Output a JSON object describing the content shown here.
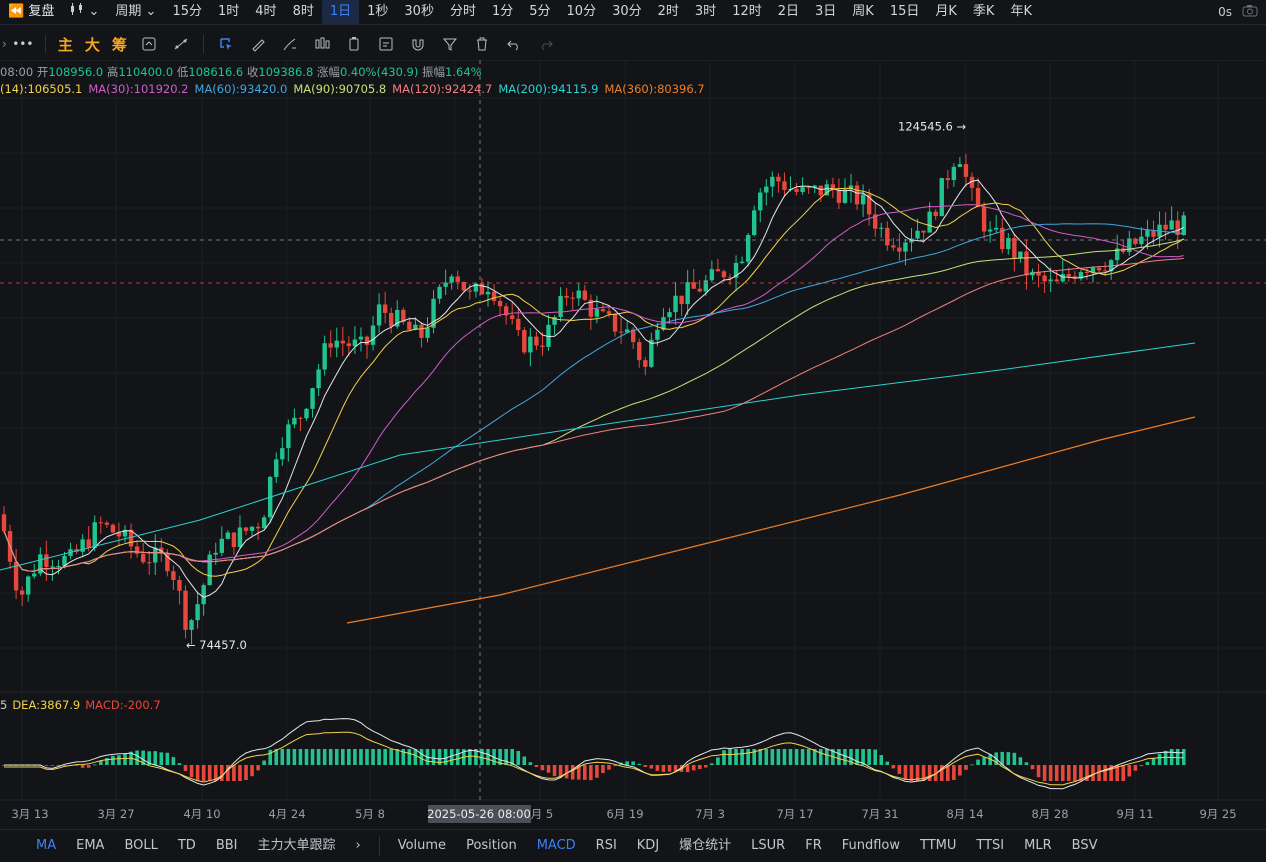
{
  "toolbar": {
    "replay": "复盘",
    "period_label": "周期",
    "periods": [
      "15分",
      "1时",
      "4时",
      "8时",
      "1日",
      "1秒",
      "30秒",
      "分时",
      "1分",
      "5分",
      "10分",
      "30分",
      "2时",
      "3时",
      "12时",
      "2日",
      "3日",
      "周K",
      "15日",
      "月K",
      "季K",
      "年K"
    ],
    "active_period": "1日",
    "timer": "0s"
  },
  "drawbar": {
    "labels": [
      "主",
      "大",
      "筹"
    ]
  },
  "legend": {
    "time_fragment": "08:00",
    "open_label": "开",
    "open": "108956.0",
    "high_label": "高",
    "high": "110400.0",
    "low_label": "低",
    "low": "108616.6",
    "close_label": "收",
    "close": "109386.8",
    "change_label": "涨幅",
    "change": "0.40%(430.9)",
    "amp_label": "振幅",
    "amp": "1.64%"
  },
  "ma_legend": [
    {
      "text": "(14):106505.1",
      "color": "#f3d34a"
    },
    {
      "text": "MA(30):101920.2",
      "color": "#d35bc8"
    },
    {
      "text": "MA(60):93420.0",
      "color": "#3fa7e0"
    },
    {
      "text": "MA(90):90705.8",
      "color": "#c9e07a"
    },
    {
      "text": "MA(120):92424.7",
      "color": "#f08080"
    },
    {
      "text": "MA(200):94115.9",
      "color": "#29d3d3"
    },
    {
      "text": "MA(360):80396.7",
      "color": "#f07f22"
    }
  ],
  "macd_legend": [
    {
      "text": "5",
      "color": "#c9ccd3"
    },
    {
      "text": "DEA:3867.9",
      "color": "#f3d34a"
    },
    {
      "text": "MACD:-200.7",
      "color": "#e8473b"
    }
  ],
  "annotations": {
    "high": "124545.6",
    "low": "74457.0",
    "crosshair_date": "2025-05-26 08:00"
  },
  "chart_data": {
    "type": "candlestick",
    "x_ticks": [
      "3月 13",
      "3月 27",
      "4月 10",
      "4月 24",
      "5月 8",
      "月 5",
      "6月 19",
      "7月 3",
      "7月 17",
      "7月 31",
      "8月 14",
      "8月 28",
      "9月 11",
      "9月 25"
    ],
    "last": {
      "open": 108956.0,
      "high": 110400.0,
      "low": 108616.6,
      "close": 109386.8
    },
    "highest": 124545.6,
    "lowest": 74457.0,
    "ma_values": {
      "MA30": 101920.2,
      "MA60": 93420.0,
      "MA90": 90705.8,
      "MA120": 92424.7,
      "MA200": 94115.9,
      "MA360": 80396.7
    },
    "macd": {
      "DEA": 3867.9,
      "MACD": -200.7
    },
    "colors": {
      "up": "#21c48f",
      "down": "#e8473b"
    }
  },
  "bottom": {
    "main_indicators": [
      "MA",
      "EMA",
      "BOLL",
      "TD",
      "BBI",
      "主力大单跟踪"
    ],
    "active_main": "MA",
    "sub_indicators": [
      "Volume",
      "Position",
      "MACD",
      "RSI",
      "KDJ",
      "爆仓统计",
      "LSUR",
      "FR",
      "Fundflow",
      "TTMU",
      "TTSI",
      "MLR",
      "BSV"
    ],
    "active_sub": "MACD",
    "arrow": "›"
  }
}
